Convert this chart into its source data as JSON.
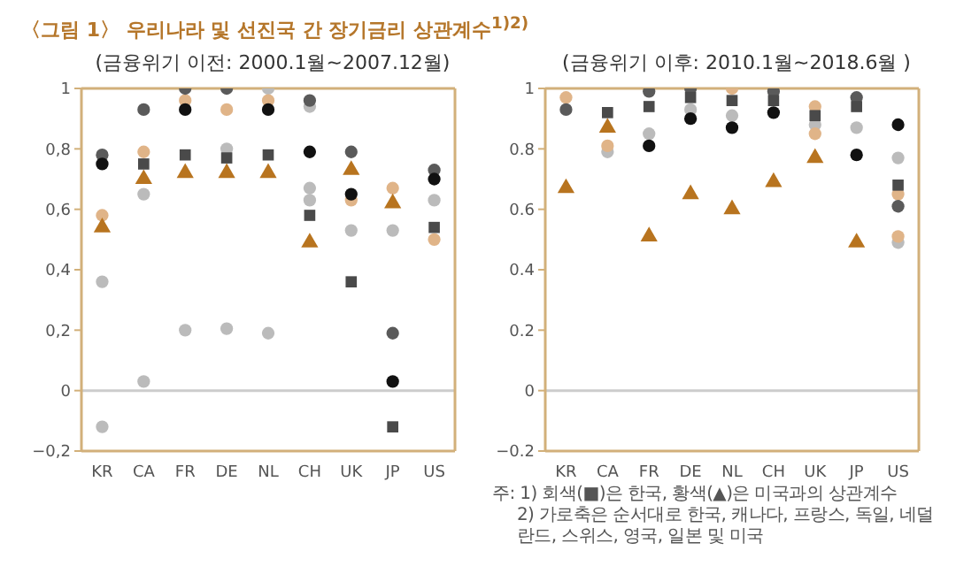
{
  "chart_data": [
    {
      "type": "scatter",
      "title": "〈그림 1〉 우리나라 및 선진국 간 장기금리 상관계수$^{1)2)}$",
      "subtitle": "(금융위기 이전: 2000.1월~2007.12월)",
      "categories": [
        "KR",
        "CA",
        "FR",
        "DE",
        "NL",
        "CH",
        "UK",
        "JP",
        "US"
      ],
      "ylim": [
        -0.2,
        1
      ],
      "yticks": [
        {
          "value": -0.2,
          "label": "−0,2"
        },
        0,
        {
          "value": 0.2,
          "label": "0,2"
        },
        {
          "value": 0.4,
          "label": "0,4"
        },
        {
          "value": 0.6,
          "label": "0,6"
        },
        {
          "value": 0.8,
          "label": "0,8"
        },
        1
      ],
      "grid": false,
      "legend": false,
      "ref_lines": [
        {
          "axis": "y",
          "value": 0,
          "color": "#cccccc"
        }
      ],
      "series": [
        {
          "color": "#bbbbbb",
          "marker": "circle",
          "x": [
            "KR",
            "KR",
            "CA",
            "CA",
            "FR",
            "DE",
            "DE",
            "NL",
            "NL",
            "CH",
            "CH",
            "CH",
            "UK",
            "UK",
            "JP",
            "JP",
            "US",
            "US"
          ],
          "values": [
            0.36,
            -0.12,
            0.65,
            0.03,
            0.2,
            0.8,
            0.205,
            1.0,
            0.19,
            0.94,
            0.67,
            0.63,
            null,
            0.53,
            0.53,
            null,
            null,
            0.63
          ]
        },
        {
          "color": "#e0b488",
          "marker": "circle",
          "x": [
            "KR",
            "CA",
            "FR",
            "DE",
            "NL",
            "UK",
            "JP",
            "US"
          ],
          "values": [
            0.58,
            0.79,
            0.96,
            0.93,
            0.96,
            0.63,
            0.67,
            0.5
          ]
        },
        {
          "color": "#5a5a5a",
          "marker": "circle",
          "x": [
            "KR",
            "CA",
            "FR",
            "DE",
            "CH",
            "UK",
            "JP",
            "US"
          ],
          "values": [
            0.78,
            0.93,
            1.0,
            1.0,
            0.96,
            0.79,
            0.19,
            0.73
          ]
        },
        {
          "color": "#111111",
          "marker": "circle",
          "x": [
            "KR",
            "FR",
            "NL",
            "CH",
            "UK",
            "JP",
            "US"
          ],
          "values": [
            0.75,
            0.93,
            0.93,
            0.79,
            0.65,
            0.03,
            0.7
          ]
        },
        {
          "color": "#b8741f",
          "marker": "triangle",
          "x": [
            "KR",
            "CA",
            "FR",
            "DE",
            "NL",
            "CH",
            "UK",
            "JP"
          ],
          "values": [
            0.54,
            0.7,
            0.72,
            0.72,
            0.72,
            0.49,
            0.73,
            0.62
          ]
        },
        {
          "color": "#4a4a4a",
          "marker": "square",
          "x": [
            "CA",
            "FR",
            "DE",
            "NL",
            "CH",
            "UK",
            "JP",
            "US"
          ],
          "values": [
            0.75,
            0.78,
            0.77,
            0.78,
            0.58,
            0.36,
            -0.12,
            0.54
          ]
        }
      ]
    },
    {
      "type": "scatter",
      "subtitle": "(금융위기 이후: 2010.1월~2018.6월 )",
      "categories": [
        "KR",
        "CA",
        "FR",
        "DE",
        "NL",
        "CH",
        "UK",
        "JP",
        "US"
      ],
      "ylim": [
        -0.2,
        1
      ],
      "yticks": [
        {
          "value": -0.2,
          "label": "−0.2"
        },
        0,
        0.2,
        0.4,
        0.6,
        0.8,
        1
      ],
      "grid": false,
      "legend": false,
      "ref_lines": [
        {
          "axis": "y",
          "value": 0,
          "color": "#cccccc"
        }
      ],
      "annotations": [
        "주: 1) 회색(■)은 한국, 황색(▲)은 미국과의 상관계수",
        "2) 가로축은 순서대로 한국, 캐나다, 프랑스, 독일, 네덜란드, 스위스, 영국, 일본 및 미국"
      ],
      "series": [
        {
          "color": "#bbbbbb",
          "marker": "circle",
          "x": [
            "KR",
            "CA",
            "FR",
            "DE",
            "NL",
            "UK",
            "JP",
            "US",
            "US"
          ],
          "values": [
            null,
            0.79,
            0.85,
            0.93,
            0.91,
            0.88,
            0.87,
            0.77,
            0.49
          ]
        },
        {
          "color": "#e0b488",
          "marker": "circle",
          "x": [
            "KR",
            "CA",
            "NL",
            "UK",
            "UK",
            "US",
            "US"
          ],
          "values": [
            0.97,
            0.81,
            1.0,
            0.94,
            0.85,
            0.65,
            0.51
          ]
        },
        {
          "color": "#5a5a5a",
          "marker": "circle",
          "x": [
            "KR",
            "FR",
            "DE",
            "CH",
            "JP",
            "US"
          ],
          "values": [
            0.93,
            0.99,
            1.0,
            0.99,
            0.97,
            0.61
          ]
        },
        {
          "color": "#111111",
          "marker": "circle",
          "x": [
            "FR",
            "DE",
            "NL",
            "CH",
            "JP",
            "US"
          ],
          "values": [
            0.81,
            0.9,
            0.87,
            0.92,
            0.78,
            0.88
          ]
        },
        {
          "color": "#b8741f",
          "marker": "triangle",
          "x": [
            "KR",
            "CA",
            "FR",
            "DE",
            "NL",
            "CH",
            "UK",
            "JP"
          ],
          "values": [
            0.67,
            0.87,
            0.51,
            0.65,
            0.6,
            0.69,
            0.77,
            0.49
          ]
        },
        {
          "color": "#4a4a4a",
          "marker": "square",
          "x": [
            "CA",
            "FR",
            "DE",
            "NL",
            "CH",
            "UK",
            "JP",
            "US"
          ],
          "values": [
            0.92,
            0.94,
            0.97,
            0.96,
            0.96,
            0.91,
            0.94,
            0.68
          ]
        }
      ]
    }
  ]
}
